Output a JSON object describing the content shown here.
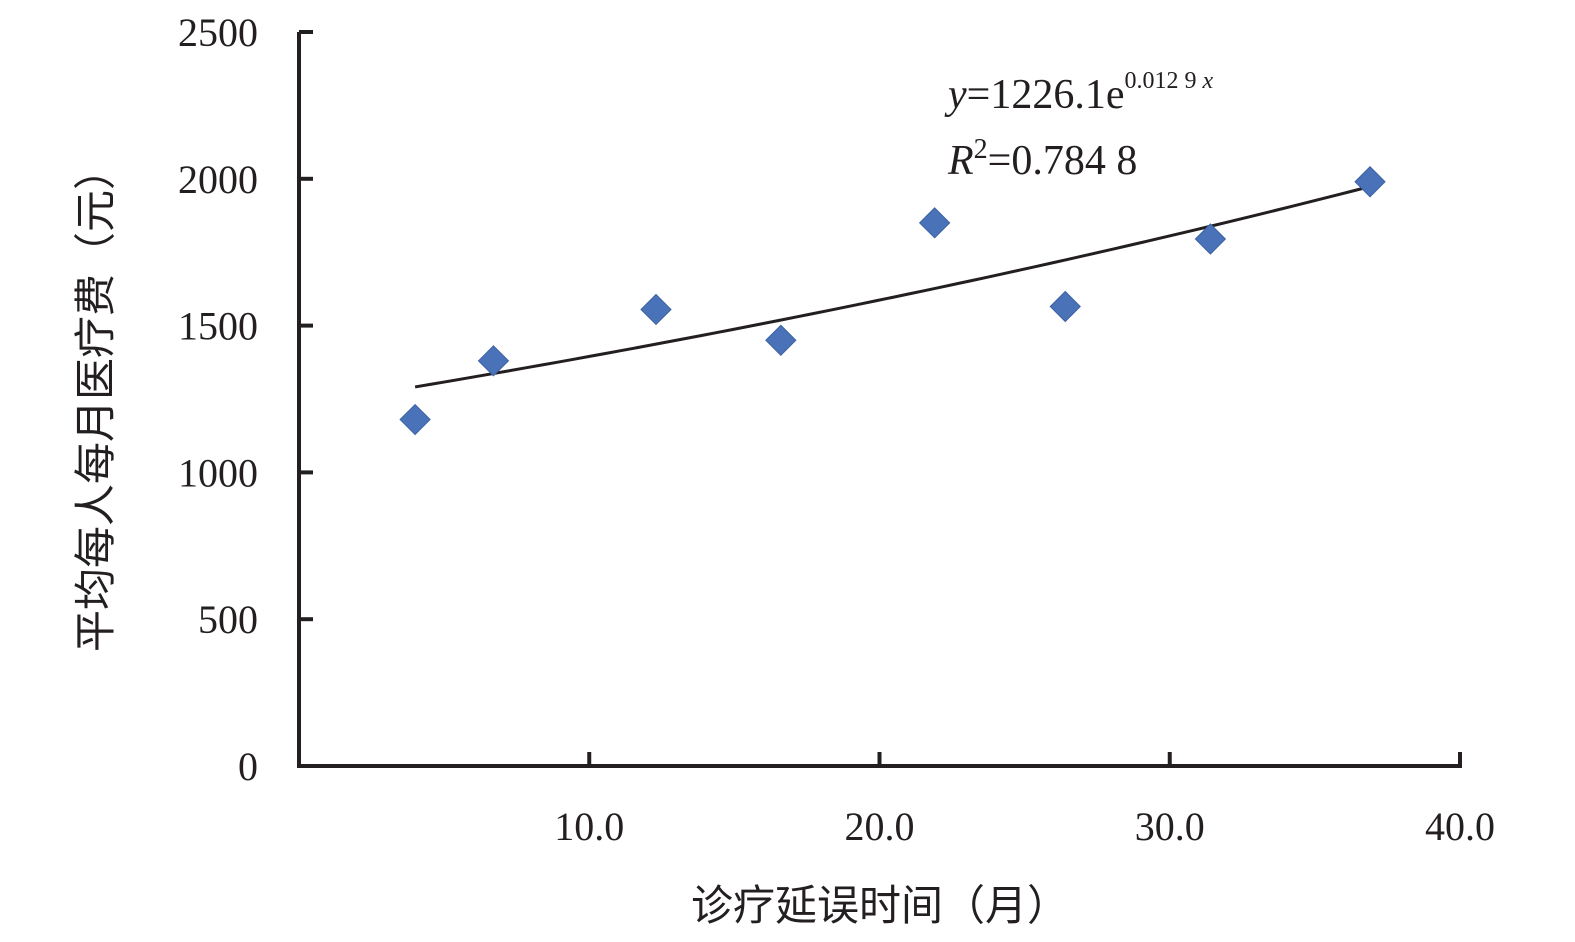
{
  "chart_data": {
    "type": "scatter",
    "xlabel": "诊疗延误时间（月）",
    "ylabel": "平均每人每月医疗费（元）",
    "xlim": [
      0,
      40
    ],
    "ylim": [
      0,
      2500
    ],
    "x_ticks": [
      "10.0",
      "20.0",
      "30.0",
      "40.0"
    ],
    "y_ticks": [
      "0",
      "500",
      "1000",
      "1500",
      "2000",
      "2500"
    ],
    "series": [
      {
        "points": [
          {
            "x": 4.0,
            "y": 1180
          },
          {
            "x": 6.7,
            "y": 1380
          },
          {
            "x": 12.3,
            "y": 1555
          },
          {
            "x": 16.6,
            "y": 1450
          },
          {
            "x": 21.9,
            "y": 1850
          },
          {
            "x": 26.4,
            "y": 1565
          },
          {
            "x": 31.4,
            "y": 1795
          },
          {
            "x": 36.9,
            "y": 1990
          }
        ],
        "color": "#4a72b8",
        "marker": "diamond"
      }
    ],
    "trendline": {
      "type": "exponential",
      "a": 1226.1,
      "b": 0.0129,
      "x_range": [
        4.0,
        36.9
      ],
      "color": "#231f20"
    },
    "annotation": {
      "equation_var": "y",
      "equation_main": "=1226.1e",
      "equation_exp_num": "0.012 9",
      "equation_exp_var": "x",
      "r2_var": "R",
      "r2_sup": "2",
      "r2_value": "=0.784 8"
    }
  }
}
